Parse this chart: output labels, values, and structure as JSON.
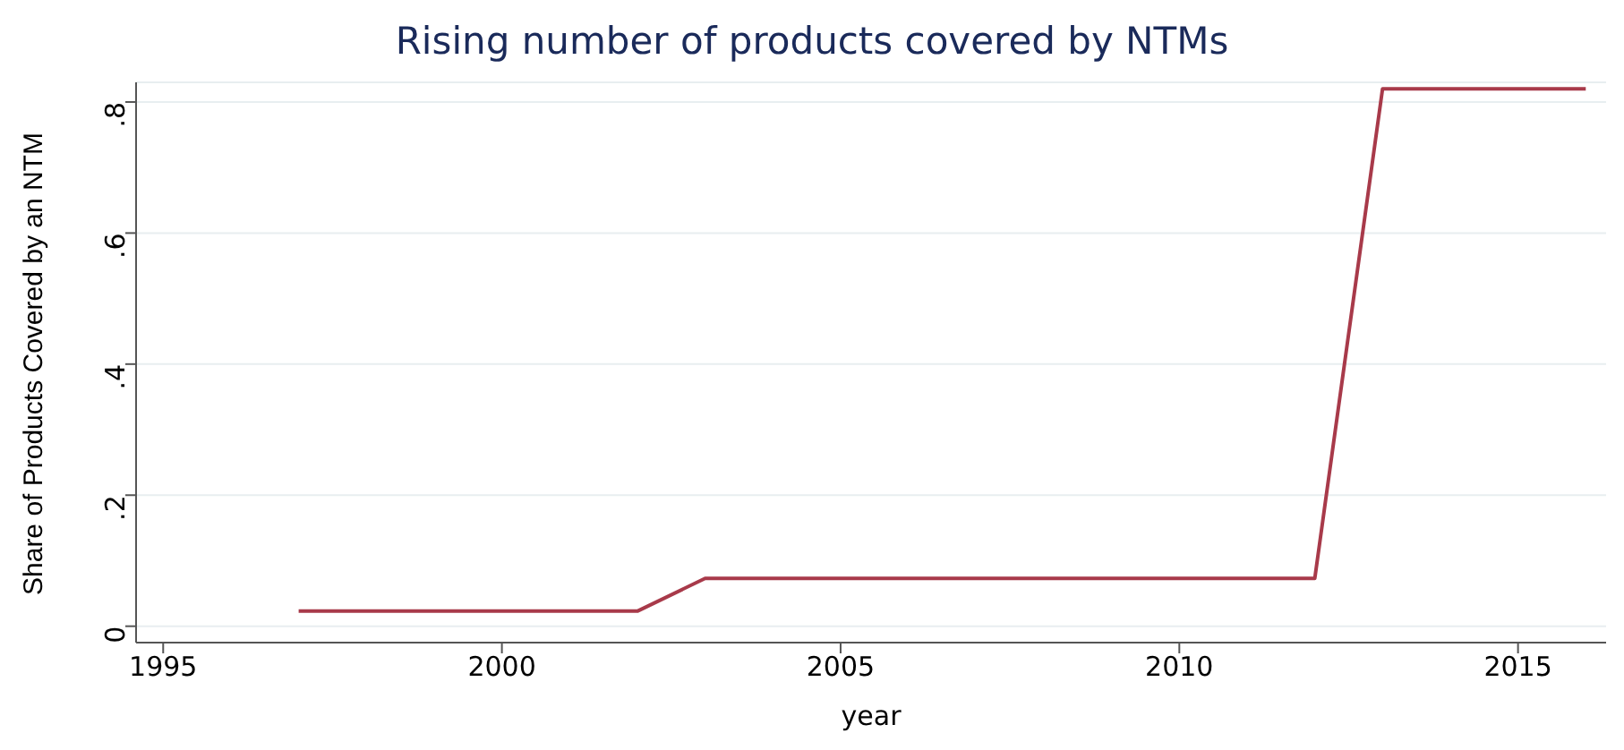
{
  "chart_data": {
    "type": "line",
    "title": "Rising number of products covered by NTMs",
    "xlabel": "year",
    "ylabel": "Share of Products Covered by an NTM",
    "x": [
      1997,
      1998,
      1999,
      2000,
      2001,
      2002,
      2003,
      2004,
      2005,
      2006,
      2007,
      2008,
      2009,
      2010,
      2011,
      2012,
      2013,
      2014,
      2015,
      2016
    ],
    "series": [
      {
        "color": "#a83a4a",
        "values": [
          0.023,
          0.023,
          0.023,
          0.023,
          0.023,
          0.023,
          0.073,
          0.073,
          0.073,
          0.073,
          0.073,
          0.073,
          0.073,
          0.073,
          0.073,
          0.073,
          0.82,
          0.82,
          0.82,
          0.82
        ]
      }
    ],
    "xlim": [
      1994.6,
      2016.3
    ],
    "xticks": [
      1995,
      2000,
      2005,
      2010,
      2015
    ],
    "ylim": [
      -0.025,
      0.83
    ],
    "yticks": [
      {
        "value": 0,
        "label": "0"
      },
      {
        "value": 0.2,
        "label": ".2"
      },
      {
        "value": 0.4,
        "label": ".4"
      },
      {
        "value": 0.6,
        "label": ".6"
      },
      {
        "value": 0.8,
        "label": ".8"
      }
    ],
    "grid": "y",
    "legend": false,
    "marker": "none",
    "line_style": "solid"
  }
}
